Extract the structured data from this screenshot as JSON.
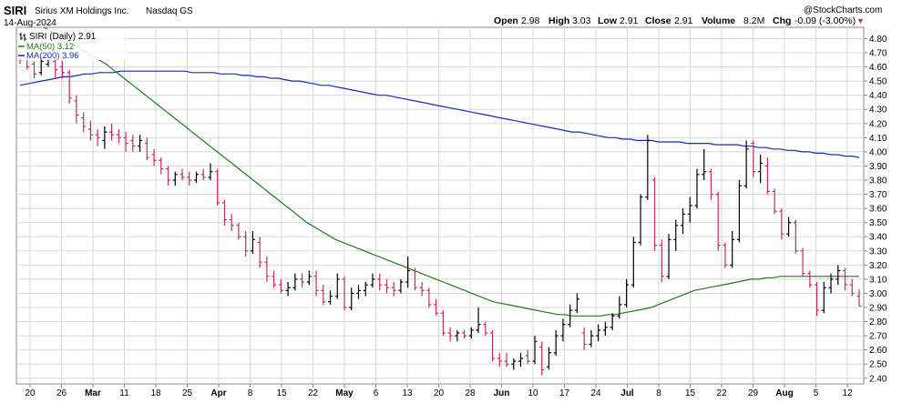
{
  "header": {
    "symbol": "SIRI",
    "company": "Sirius XM Holdings Inc.",
    "exchange": "Nasdaq GS",
    "date": "14-Aug-2024",
    "watermark": "@StockCharts.com",
    "open_label": "Open",
    "open": "2.98",
    "high_label": "High",
    "high": "3.03",
    "low_label": "Low",
    "low": "2.91",
    "close_label": "Close",
    "close": "2.91",
    "volume_label": "Volume",
    "volume": "8.2M",
    "chg_label": "Chg",
    "chg": "-0.09 (-3.00%)",
    "chg_arrow": "▼"
  },
  "legend": {
    "price": "SIRI (Daily) 2.91",
    "ma50": "MA(50) 3.12",
    "ma200": "MA(200) 3.96"
  },
  "colors": {
    "up": "#000000",
    "down": "#c0305a",
    "ma50": "#1f7a1f",
    "ma200": "#1a2ab0",
    "grid": "#d8d8d8"
  },
  "chart_data": {
    "type": "ohlc",
    "x_tick_labels": [
      {
        "label": "20",
        "bold": false
      },
      {
        "label": "26",
        "bold": false
      },
      {
        "label": "Mar",
        "bold": true
      },
      {
        "label": "11",
        "bold": false
      },
      {
        "label": "18",
        "bold": false
      },
      {
        "label": "25",
        "bold": false
      },
      {
        "label": "Apr",
        "bold": true
      },
      {
        "label": "8",
        "bold": false
      },
      {
        "label": "15",
        "bold": false
      },
      {
        "label": "22",
        "bold": false
      },
      {
        "label": "May",
        "bold": true
      },
      {
        "label": "6",
        "bold": false
      },
      {
        "label": "13",
        "bold": false
      },
      {
        "label": "20",
        "bold": false
      },
      {
        "label": "28",
        "bold": false
      },
      {
        "label": "Jun",
        "bold": true
      },
      {
        "label": "10",
        "bold": false
      },
      {
        "label": "17",
        "bold": false
      },
      {
        "label": "24",
        "bold": false
      },
      {
        "label": "Jul",
        "bold": true
      },
      {
        "label": "8",
        "bold": false
      },
      {
        "label": "15",
        "bold": false
      },
      {
        "label": "22",
        "bold": false
      },
      {
        "label": "29",
        "bold": false
      },
      {
        "label": "Aug",
        "bold": true
      },
      {
        "label": "5",
        "bold": false
      },
      {
        "label": "12",
        "bold": false
      }
    ],
    "y_ticks": [
      2.4,
      2.5,
      2.6,
      2.7,
      2.8,
      2.9,
      3.0,
      3.1,
      3.2,
      3.3,
      3.4,
      3.5,
      3.6,
      3.7,
      3.8,
      3.9,
      4.0,
      4.1,
      4.2,
      4.3,
      4.4,
      4.5,
      4.6,
      4.7,
      4.8
    ],
    "ylim": [
      2.36,
      4.88
    ],
    "bars": [
      [
        4.7,
        4.68,
        4.62,
        4.65
      ],
      [
        4.66,
        4.68,
        4.58,
        4.6
      ],
      [
        4.62,
        4.64,
        4.52,
        4.55
      ],
      [
        4.56,
        4.66,
        4.54,
        4.64
      ],
      [
        4.62,
        4.7,
        4.6,
        4.66
      ],
      [
        4.64,
        4.66,
        4.52,
        4.58
      ],
      [
        4.6,
        4.64,
        4.52,
        4.56
      ],
      [
        4.56,
        4.58,
        4.34,
        4.38
      ],
      [
        4.36,
        4.4,
        4.2,
        4.26
      ],
      [
        4.24,
        4.28,
        4.14,
        4.18
      ],
      [
        4.16,
        4.22,
        4.08,
        4.12
      ],
      [
        4.12,
        4.16,
        4.04,
        4.1
      ],
      [
        4.08,
        4.18,
        4.02,
        4.14
      ],
      [
        4.14,
        4.2,
        4.08,
        4.12
      ],
      [
        4.12,
        4.16,
        4.06,
        4.1
      ],
      [
        4.1,
        4.14,
        4.0,
        4.06
      ],
      [
        4.08,
        4.12,
        4.0,
        4.04
      ],
      [
        4.04,
        4.12,
        4.0,
        4.08
      ],
      [
        4.06,
        4.1,
        3.94,
        3.96
      ],
      [
        3.98,
        4.02,
        3.9,
        3.94
      ],
      [
        3.94,
        3.96,
        3.84,
        3.88
      ],
      [
        3.88,
        3.9,
        3.76,
        3.8
      ],
      [
        3.8,
        3.86,
        3.76,
        3.84
      ],
      [
        3.84,
        3.88,
        3.8,
        3.82
      ],
      [
        3.82,
        3.86,
        3.76,
        3.8
      ],
      [
        3.8,
        3.86,
        3.78,
        3.84
      ],
      [
        3.84,
        3.88,
        3.8,
        3.82
      ],
      [
        3.82,
        3.92,
        3.8,
        3.86
      ],
      [
        3.86,
        3.88,
        3.62,
        3.64
      ],
      [
        3.64,
        3.66,
        3.48,
        3.52
      ],
      [
        3.52,
        3.56,
        3.44,
        3.48
      ],
      [
        3.48,
        3.5,
        3.38,
        3.4
      ],
      [
        3.4,
        3.44,
        3.26,
        3.3
      ],
      [
        3.3,
        3.44,
        3.28,
        3.38
      ],
      [
        3.36,
        3.4,
        3.18,
        3.22
      ],
      [
        3.22,
        3.26,
        3.08,
        3.12
      ],
      [
        3.12,
        3.16,
        3.04,
        3.06
      ],
      [
        3.06,
        3.1,
        3.0,
        3.02
      ],
      [
        3.02,
        3.08,
        2.98,
        3.04
      ],
      [
        3.04,
        3.14,
        3.02,
        3.1
      ],
      [
        3.1,
        3.14,
        3.04,
        3.08
      ],
      [
        3.08,
        3.16,
        3.06,
        3.12
      ],
      [
        3.12,
        3.16,
        2.98,
        3.02
      ],
      [
        3.02,
        3.06,
        2.92,
        2.94
      ],
      [
        2.94,
        3.02,
        2.92,
        2.98
      ],
      [
        2.98,
        3.14,
        2.96,
        3.1
      ],
      [
        3.1,
        3.12,
        2.88,
        2.9
      ],
      [
        2.9,
        3.04,
        2.88,
        3.0
      ],
      [
        3.0,
        3.06,
        2.96,
        3.02
      ],
      [
        3.02,
        3.08,
        2.98,
        3.06
      ],
      [
        3.06,
        3.14,
        3.04,
        3.1
      ],
      [
        3.1,
        3.14,
        3.02,
        3.06
      ],
      [
        3.06,
        3.1,
        3.0,
        3.04
      ],
      [
        3.04,
        3.08,
        2.98,
        3.02
      ],
      [
        3.02,
        3.1,
        3.0,
        3.08
      ],
      [
        3.08,
        3.26,
        3.04,
        3.16
      ],
      [
        3.16,
        3.18,
        3.02,
        3.04
      ],
      [
        3.04,
        3.08,
        2.98,
        3.02
      ],
      [
        3.02,
        3.04,
        2.9,
        2.92
      ],
      [
        2.92,
        2.96,
        2.84,
        2.86
      ],
      [
        2.86,
        2.88,
        2.7,
        2.72
      ],
      [
        2.72,
        2.76,
        2.66,
        2.7
      ],
      [
        2.7,
        2.74,
        2.66,
        2.72
      ],
      [
        2.72,
        2.74,
        2.68,
        2.7
      ],
      [
        2.7,
        2.76,
        2.68,
        2.74
      ],
      [
        2.74,
        2.9,
        2.72,
        2.78
      ],
      [
        2.78,
        2.8,
        2.7,
        2.72
      ],
      [
        2.72,
        2.74,
        2.52,
        2.54
      ],
      [
        2.54,
        2.58,
        2.48,
        2.52
      ],
      [
        2.52,
        2.58,
        2.48,
        2.5
      ],
      [
        2.5,
        2.54,
        2.46,
        2.52
      ],
      [
        2.52,
        2.58,
        2.48,
        2.54
      ],
      [
        2.56,
        2.6,
        2.5,
        2.52
      ],
      [
        2.52,
        2.7,
        2.5,
        2.66
      ],
      [
        2.62,
        2.66,
        2.42,
        2.46
      ],
      [
        2.48,
        2.62,
        2.46,
        2.58
      ],
      [
        2.58,
        2.74,
        2.56,
        2.7
      ],
      [
        2.7,
        2.82,
        2.66,
        2.78
      ],
      [
        2.78,
        2.92,
        2.76,
        2.88
      ],
      [
        2.88,
        3.0,
        2.86,
        2.96
      ],
      [
        2.72,
        2.76,
        2.6,
        2.64
      ],
      [
        2.64,
        2.74,
        2.62,
        2.7
      ],
      [
        2.7,
        2.78,
        2.66,
        2.74
      ],
      [
        2.74,
        2.8,
        2.7,
        2.76
      ],
      [
        2.76,
        2.86,
        2.74,
        2.84
      ],
      [
        2.84,
        2.98,
        2.82,
        2.92
      ],
      [
        2.92,
        3.1,
        2.9,
        3.06
      ],
      [
        3.06,
        3.4,
        3.04,
        3.36
      ],
      [
        3.36,
        3.7,
        3.34,
        3.68
      ],
      [
        3.68,
        4.12,
        3.66,
        4.08
      ],
      [
        3.8,
        3.82,
        3.3,
        3.34
      ],
      [
        3.34,
        3.38,
        3.08,
        3.12
      ],
      [
        3.12,
        3.42,
        3.1,
        3.38
      ],
      [
        3.38,
        3.52,
        3.3,
        3.48
      ],
      [
        3.48,
        3.6,
        3.42,
        3.56
      ],
      [
        3.56,
        3.68,
        3.5,
        3.62
      ],
      [
        3.62,
        3.88,
        3.6,
        3.84
      ],
      [
        3.84,
        4.02,
        3.8,
        3.86
      ],
      [
        3.86,
        3.88,
        3.66,
        3.7
      ],
      [
        3.7,
        3.72,
        3.3,
        3.34
      ],
      [
        3.34,
        3.36,
        3.18,
        3.2
      ],
      [
        3.2,
        3.44,
        3.18,
        3.38
      ],
      [
        3.38,
        3.8,
        3.36,
        3.76
      ],
      [
        3.76,
        4.08,
        3.74,
        4.02
      ],
      [
        4.06,
        4.08,
        3.82,
        3.86
      ],
      [
        3.86,
        3.98,
        3.78,
        3.92
      ],
      [
        3.9,
        3.96,
        3.7,
        3.72
      ],
      [
        3.72,
        3.74,
        3.56,
        3.58
      ],
      [
        3.58,
        3.6,
        3.38,
        3.42
      ],
      [
        3.42,
        3.54,
        3.4,
        3.5
      ],
      [
        3.5,
        3.52,
        3.28,
        3.3
      ],
      [
        3.3,
        3.32,
        3.12,
        3.14
      ],
      [
        3.14,
        3.16,
        3.04,
        3.06
      ],
      [
        3.06,
        3.08,
        2.84,
        2.88
      ],
      [
        2.88,
        3.08,
        2.86,
        3.04
      ],
      [
        3.04,
        3.14,
        3.0,
        3.1
      ],
      [
        3.1,
        3.2,
        3.06,
        3.16
      ],
      [
        3.16,
        3.18,
        3.02,
        3.06
      ],
      [
        3.06,
        3.1,
        2.98,
        3.0
      ],
      [
        2.98,
        3.03,
        2.91,
        2.91
      ]
    ],
    "ma50": [
      4.98,
      4.95,
      4.92,
      4.89,
      4.86,
      4.83,
      4.8,
      4.77,
      4.74,
      4.71,
      4.68,
      4.65,
      4.62,
      4.58,
      4.54,
      4.5,
      4.46,
      4.42,
      4.38,
      4.34,
      4.3,
      4.26,
      4.22,
      4.18,
      4.14,
      4.1,
      4.06,
      4.02,
      3.98,
      3.94,
      3.9,
      3.86,
      3.82,
      3.78,
      3.74,
      3.7,
      3.66,
      3.62,
      3.58,
      3.54,
      3.5,
      3.47,
      3.44,
      3.41,
      3.38,
      3.36,
      3.34,
      3.32,
      3.3,
      3.28,
      3.26,
      3.24,
      3.22,
      3.2,
      3.18,
      3.16,
      3.14,
      3.12,
      3.1,
      3.08,
      3.06,
      3.04,
      3.02,
      3.0,
      2.98,
      2.96,
      2.94,
      2.93,
      2.92,
      2.91,
      2.9,
      2.89,
      2.88,
      2.87,
      2.86,
      2.85,
      2.85,
      2.84,
      2.84,
      2.84,
      2.84,
      2.84,
      2.85,
      2.85,
      2.86,
      2.87,
      2.88,
      2.89,
      2.9,
      2.92,
      2.94,
      2.96,
      2.98,
      3.0,
      3.02,
      3.03,
      3.04,
      3.05,
      3.06,
      3.07,
      3.08,
      3.09,
      3.1,
      3.1,
      3.11,
      3.11,
      3.12,
      3.12,
      3.12,
      3.12,
      3.12,
      3.12,
      3.12,
      3.12,
      3.12,
      3.12,
      3.12,
      3.12
    ],
    "ma200": [
      4.47,
      4.48,
      4.49,
      4.5,
      4.51,
      4.52,
      4.53,
      4.53,
      4.54,
      4.55,
      4.55,
      4.56,
      4.56,
      4.56,
      4.57,
      4.57,
      4.57,
      4.57,
      4.57,
      4.57,
      4.57,
      4.57,
      4.57,
      4.57,
      4.56,
      4.56,
      4.56,
      4.56,
      4.55,
      4.55,
      4.55,
      4.54,
      4.54,
      4.53,
      4.53,
      4.52,
      4.52,
      4.51,
      4.5,
      4.5,
      4.49,
      4.48,
      4.47,
      4.47,
      4.46,
      4.45,
      4.44,
      4.43,
      4.42,
      4.41,
      4.4,
      4.4,
      4.39,
      4.38,
      4.37,
      4.36,
      4.35,
      4.34,
      4.33,
      4.32,
      4.31,
      4.3,
      4.29,
      4.28,
      4.27,
      4.26,
      4.25,
      4.24,
      4.23,
      4.22,
      4.21,
      4.2,
      4.19,
      4.18,
      4.17,
      4.16,
      4.15,
      4.14,
      4.14,
      4.13,
      4.12,
      4.11,
      4.1,
      4.1,
      4.09,
      4.09,
      4.08,
      4.08,
      4.08,
      4.07,
      4.07,
      4.07,
      4.07,
      4.06,
      4.06,
      4.06,
      4.06,
      4.05,
      4.05,
      4.05,
      4.05,
      4.04,
      4.04,
      4.03,
      4.03,
      4.02,
      4.02,
      4.01,
      4.01,
      4.0,
      4.0,
      3.99,
      3.99,
      3.98,
      3.98,
      3.97,
      3.97,
      3.96
    ]
  }
}
